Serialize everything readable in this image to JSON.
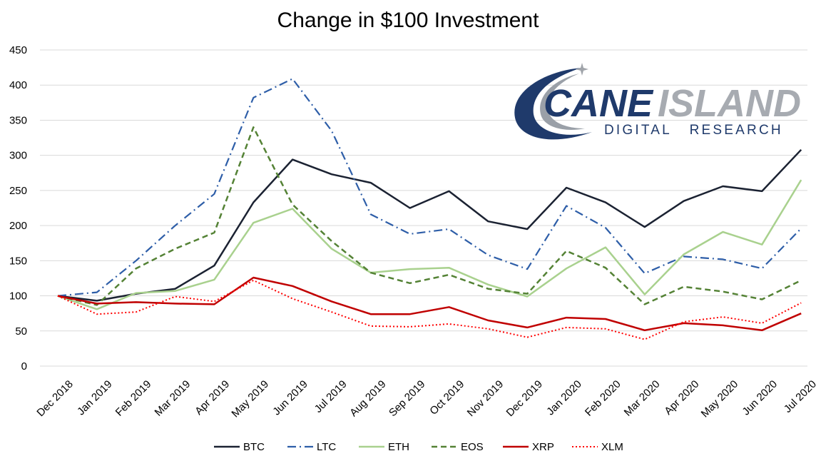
{
  "chart_data": {
    "type": "line",
    "title": "Change in $100 Investment",
    "xlabel": "",
    "ylabel": "",
    "ylim": [
      0,
      450
    ],
    "yticks": [
      0,
      50,
      100,
      150,
      200,
      250,
      300,
      350,
      400,
      450
    ],
    "grid": true,
    "legend_position": "bottom",
    "categories": [
      "Dec 2018",
      "Jan 2019",
      "Feb 2019",
      "Mar 2019",
      "Apr 2019",
      "May 2019",
      "Jun 2019",
      "Jul 2019",
      "Aug 2019",
      "Sep 2019",
      "Oct 2019",
      "Nov 2019",
      "Dec 2019",
      "Jan 2020",
      "Feb 2020",
      "Mar 2020",
      "Apr 2020",
      "May 2020",
      "Jun 2020",
      "Jul 2020"
    ],
    "series": [
      {
        "name": "BTC",
        "color": "#1b2232",
        "style": "solid",
        "width": 2.5,
        "values": [
          100,
          93,
          103,
          110,
          143,
          233,
          294,
          273,
          261,
          225,
          249,
          206,
          195,
          254,
          233,
          198,
          235,
          256,
          249,
          308
        ]
      },
      {
        "name": "LTC",
        "color": "#2e5ea8",
        "style": "dashdot",
        "width": 2.2,
        "values": [
          100,
          105,
          150,
          200,
          245,
          382,
          409,
          335,
          216,
          188,
          195,
          158,
          138,
          228,
          197,
          132,
          156,
          152,
          139,
          196
        ]
      },
      {
        "name": "ETH",
        "color": "#a9d18e",
        "style": "solid",
        "width": 2.5,
        "values": [
          100,
          81,
          104,
          107,
          123,
          204,
          224,
          167,
          133,
          138,
          140,
          116,
          99,
          139,
          169,
          102,
          159,
          191,
          173,
          265
        ]
      },
      {
        "name": "EOS",
        "color": "#548235",
        "style": "dashed",
        "width": 2.5,
        "values": [
          100,
          87,
          139,
          167,
          190,
          340,
          230,
          178,
          133,
          118,
          130,
          110,
          103,
          164,
          140,
          88,
          113,
          106,
          95,
          122
        ]
      },
      {
        "name": "XRP",
        "color": "#c00000",
        "style": "solid",
        "width": 2.5,
        "values": [
          100,
          89,
          91,
          89,
          88,
          126,
          114,
          92,
          74,
          74,
          84,
          65,
          55,
          69,
          67,
          51,
          61,
          58,
          51,
          75
        ]
      },
      {
        "name": "XLM",
        "color": "#ff0000",
        "style": "dotted",
        "width": 2,
        "values": [
          100,
          74,
          77,
          99,
          92,
          122,
          96,
          77,
          57,
          56,
          60,
          53,
          41,
          55,
          53,
          38,
          63,
          70,
          61,
          90
        ]
      }
    ]
  },
  "logo": {
    "line1_a": "CANE",
    "line1_b": "ISLAND",
    "line2": "DIGITAL   RESEARCH"
  }
}
